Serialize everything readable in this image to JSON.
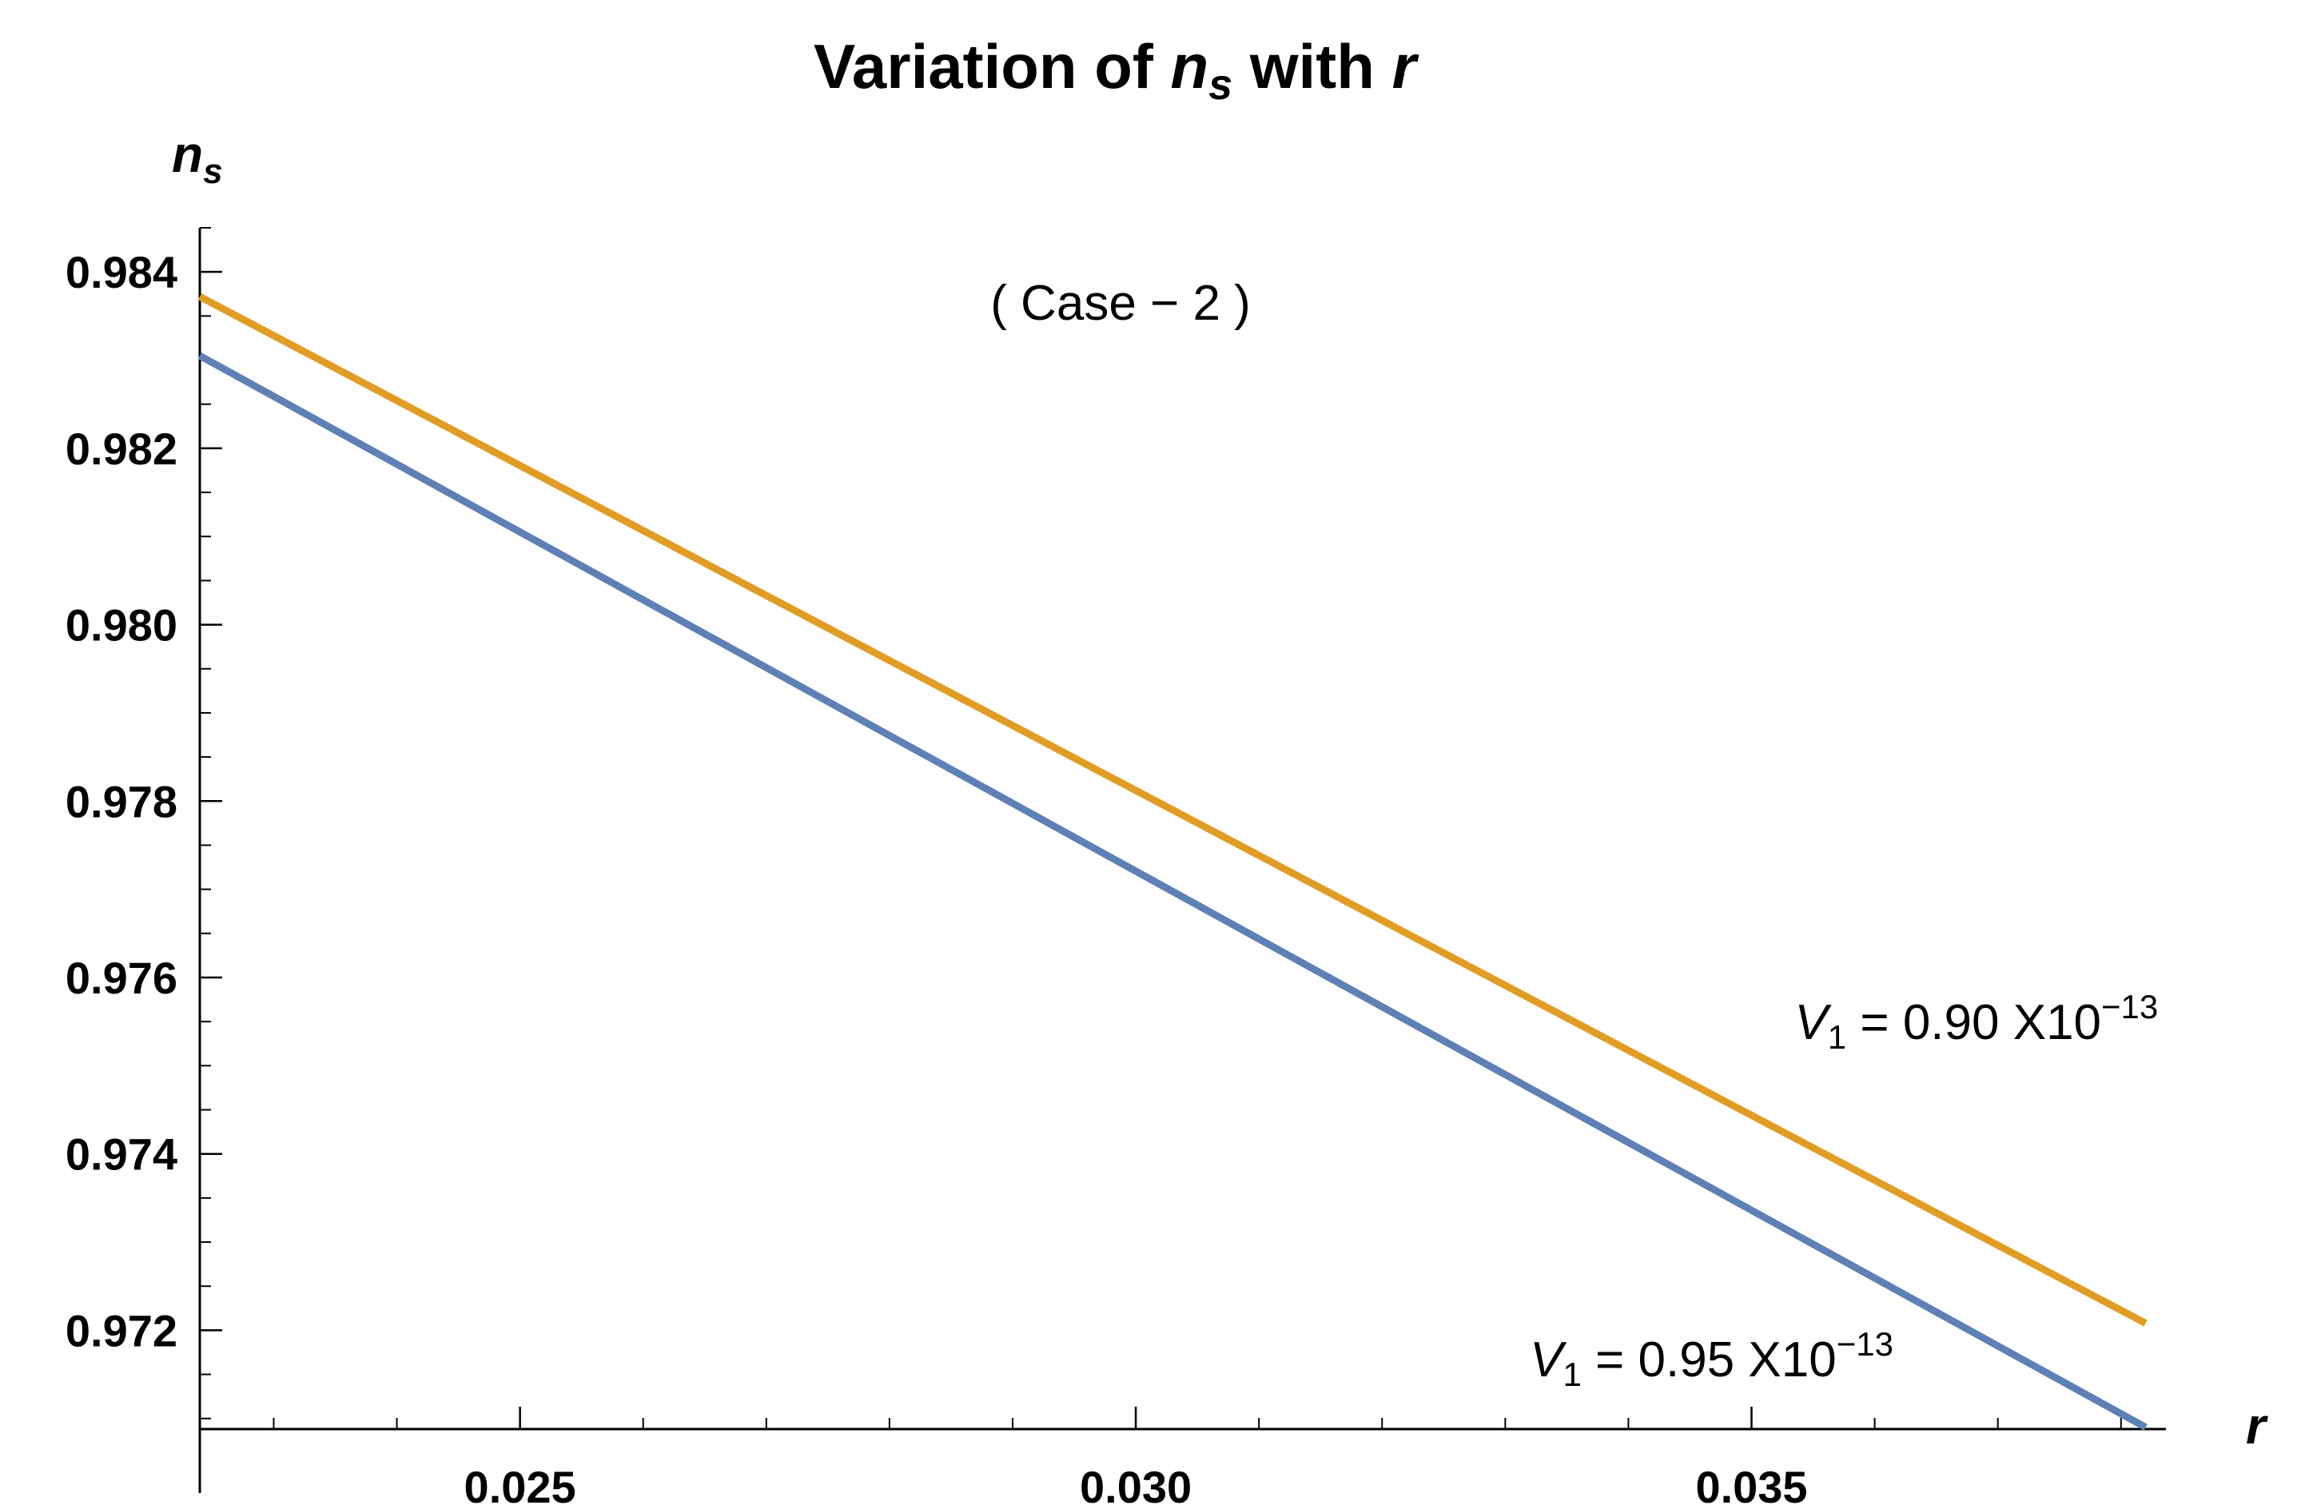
{
  "chart_data": {
    "type": "line",
    "title": {
      "prefix": "Variation of ",
      "var_main": "n",
      "var_sub": "s",
      "suffix": " with ",
      "var2": "r"
    },
    "xlabel": "r",
    "ylabel": {
      "main": "n",
      "sub": "s"
    },
    "annotation": "( Case − 2 )",
    "xlim": [
      0.0224,
      0.0383
    ],
    "ylim": [
      0.97088,
      0.9845
    ],
    "xticks": [
      {
        "value": 0.025,
        "label": "0.025"
      },
      {
        "value": 0.03,
        "label": "0.030"
      },
      {
        "value": 0.035,
        "label": "0.035"
      }
    ],
    "yticks": [
      {
        "value": 0.972,
        "label": "0.972"
      },
      {
        "value": 0.974,
        "label": "0.974"
      },
      {
        "value": 0.976,
        "label": "0.976"
      },
      {
        "value": 0.978,
        "label": "0.978"
      },
      {
        "value": 0.98,
        "label": "0.980"
      },
      {
        "value": 0.982,
        "label": "0.982"
      },
      {
        "value": 0.984,
        "label": "0.984"
      }
    ],
    "x_minor_step": 0.001,
    "y_minor_step": 0.0005,
    "series": [
      {
        "name": "V1 = 0.90 X10^-13",
        "label": {
          "var": "V",
          "sub": "1",
          "eq": " = 0.90 X10",
          "exp": "−13"
        },
        "color": "#E19C24",
        "label_anchor": {
          "x": 0.03535,
          "y": 0.9753
        },
        "x": [
          0.0224,
          0.0382
        ],
        "y": [
          0.98372,
          0.97208
        ]
      },
      {
        "name": "V1 = 0.95 X10^-13",
        "label": {
          "var": "V",
          "sub": "1",
          "eq": " = 0.95 X10",
          "exp": "−13"
        },
        "color": "#5E81B5",
        "label_anchor": {
          "x": 0.0332,
          "y": 0.97148
        },
        "x": [
          0.0224,
          0.0382
        ],
        "y": [
          0.98305,
          0.9709
        ]
      }
    ]
  }
}
